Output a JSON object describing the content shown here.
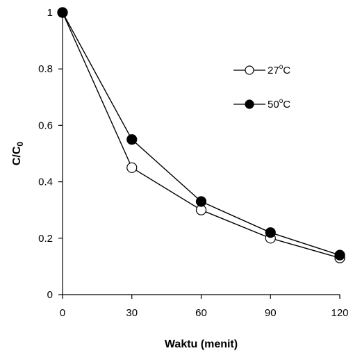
{
  "chart_data": {
    "type": "line",
    "title": "",
    "xlabel": "Waktu (menit)",
    "ylabel": {
      "main": "C/C",
      "subscript": "0"
    },
    "x": [
      0,
      30,
      60,
      90,
      120
    ],
    "x_ticks": [
      "0",
      "30",
      "60",
      "90",
      "120"
    ],
    "y_ticks": [
      "0",
      "0.2",
      "0.4",
      "0.6",
      "0.8",
      "1"
    ],
    "xlim": [
      0,
      120
    ],
    "ylim": [
      0,
      1
    ],
    "grid": false,
    "legend_position": "top-right",
    "series": [
      {
        "name": {
          "main": "27",
          "sup": "o",
          "unit": "C"
        },
        "marker": "open-circle",
        "color": "#000000",
        "values": [
          1.0,
          0.45,
          0.3,
          0.2,
          0.13
        ]
      },
      {
        "name": {
          "main": "50",
          "sup": "o",
          "unit": "C"
        },
        "marker": "filled-circle",
        "color": "#000000",
        "values": [
          1.0,
          0.55,
          0.33,
          0.22,
          0.14
        ]
      }
    ]
  }
}
